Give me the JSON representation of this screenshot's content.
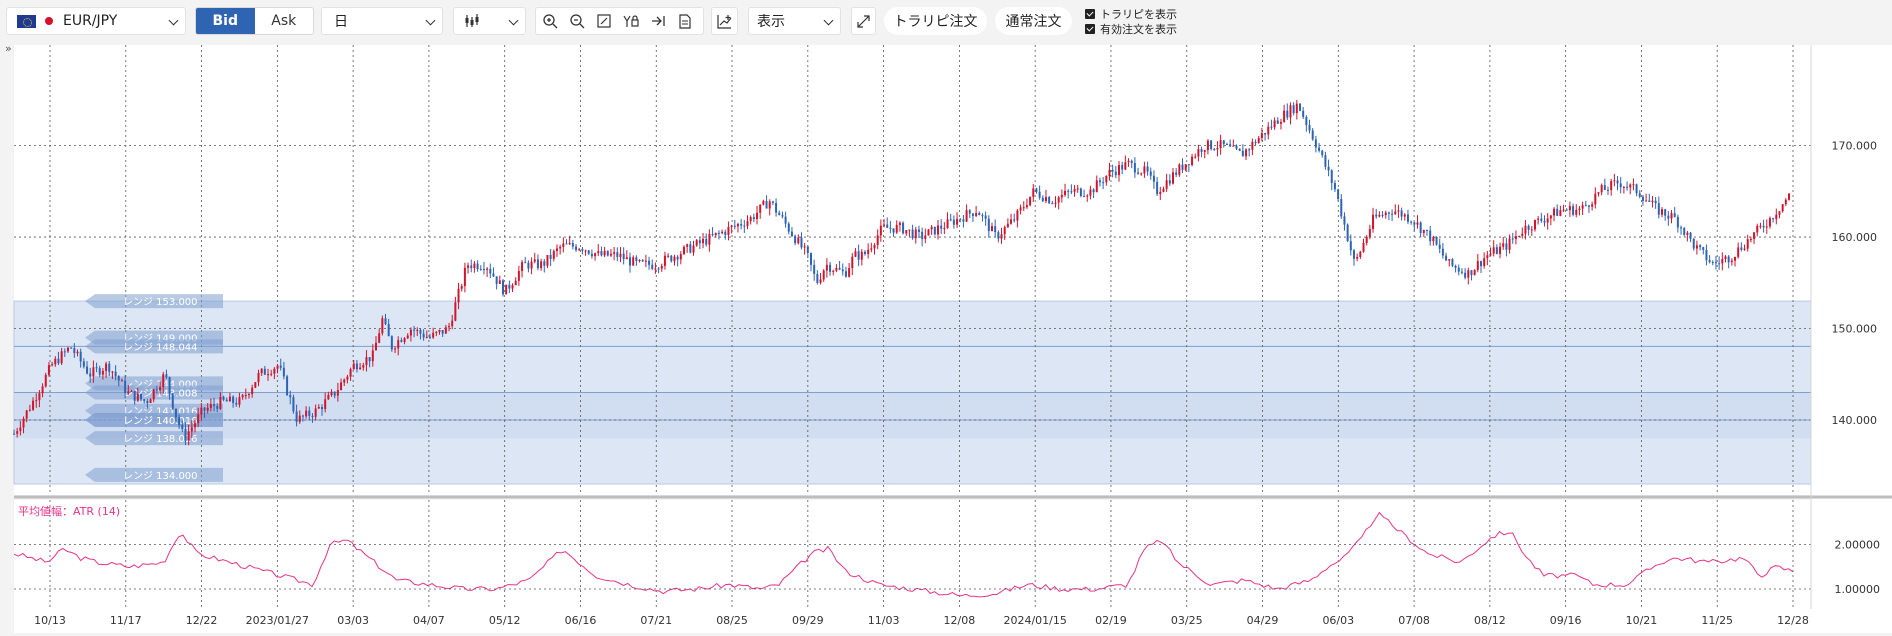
{
  "toolbar": {
    "symbol": "EUR/JPY",
    "symbol_icon": "eu-flag-icon",
    "bid_label": "Bid",
    "ask_label": "Ask",
    "timeframe": "日",
    "chart_type_icon": "candlestick-icon",
    "display_label": "表示",
    "trail_order_label": "トラリピ注文",
    "normal_order_label": "通常注文",
    "show_trail_label": "トラリピを表示",
    "show_active_label": "有効注文を表示",
    "tools": [
      "zoom-in-icon",
      "zoom-out-icon",
      "fit-icon",
      "text-lock-icon",
      "jump-end-icon",
      "document-icon",
      "indicator-add-icon"
    ]
  },
  "colors": {
    "up": "#d0152c",
    "down": "#2d63b5",
    "range_fill": "#dce6f4",
    "range_tag": "#7f9fd0",
    "atr_line": "#e6338a",
    "accent": "#2f64b3"
  },
  "chart_data": {
    "type": "candlestick",
    "y_ticks": [
      "170.000",
      "160.000",
      "150.000",
      "140.000"
    ],
    "y_range": [
      131.8,
      181.0
    ],
    "x_labels": [
      "10/13",
      "11/17",
      "12/22",
      "2023/01/27",
      "03/03",
      "04/07",
      "05/12",
      "06/16",
      "07/21",
      "08/25",
      "09/29",
      "11/03",
      "12/08",
      "2024/01/15",
      "02/19",
      "03/25",
      "04/29",
      "06/03",
      "07/08",
      "08/12",
      "09/16",
      "10/21",
      "11/25",
      "12/28"
    ],
    "price_path": [
      [
        0,
        138.5
      ],
      [
        2,
        142
      ],
      [
        4,
        146
      ],
      [
        6,
        148
      ],
      [
        8,
        145
      ],
      [
        10,
        146
      ],
      [
        12,
        143
      ],
      [
        14,
        142
      ],
      [
        16,
        145
      ],
      [
        17,
        141
      ],
      [
        18,
        138
      ],
      [
        20,
        141
      ],
      [
        22,
        142
      ],
      [
        24,
        142
      ],
      [
        26,
        145
      ],
      [
        28,
        146
      ],
      [
        30,
        140
      ],
      [
        32,
        141
      ],
      [
        34,
        143
      ],
      [
        36,
        146
      ],
      [
        38,
        147
      ],
      [
        39,
        151
      ],
      [
        40,
        148
      ],
      [
        42,
        150
      ],
      [
        44,
        149
      ],
      [
        46,
        150
      ],
      [
        48,
        157
      ],
      [
        50,
        157
      ],
      [
        52,
        154
      ],
      [
        54,
        157
      ],
      [
        56,
        157
      ],
      [
        58,
        159
      ],
      [
        60,
        159
      ],
      [
        62,
        158
      ],
      [
        64,
        158
      ],
      [
        66,
        157
      ],
      [
        68,
        157
      ],
      [
        70,
        158
      ],
      [
        72,
        159
      ],
      [
        74,
        160
      ],
      [
        76,
        161
      ],
      [
        78,
        162
      ],
      [
        80,
        164
      ],
      [
        82,
        161
      ],
      [
        84,
        158
      ],
      [
        85,
        155
      ],
      [
        86,
        157
      ],
      [
        88,
        156
      ],
      [
        89,
        158
      ],
      [
        90,
        158
      ],
      [
        92,
        161
      ],
      [
        94,
        161
      ],
      [
        96,
        160
      ],
      [
        98,
        161
      ],
      [
        100,
        162
      ],
      [
        102,
        163
      ],
      [
        104,
        160
      ],
      [
        106,
        162
      ],
      [
        108,
        165
      ],
      [
        110,
        164
      ],
      [
        112,
        165
      ],
      [
        114,
        165
      ],
      [
        116,
        167
      ],
      [
        118,
        168
      ],
      [
        120,
        167
      ],
      [
        121,
        165
      ],
      [
        122,
        166
      ],
      [
        124,
        168
      ],
      [
        126,
        170
      ],
      [
        128,
        170
      ],
      [
        130,
        169
      ],
      [
        132,
        171
      ],
      [
        134,
        173
      ],
      [
        136,
        174.5
      ],
      [
        138,
        170
      ],
      [
        140,
        165
      ],
      [
        142,
        157
      ],
      [
        144,
        162
      ],
      [
        146,
        163
      ],
      [
        148,
        162
      ],
      [
        150,
        160
      ],
      [
        152,
        157
      ],
      [
        154,
        156
      ],
      [
        156,
        158
      ],
      [
        158,
        159
      ],
      [
        160,
        161
      ],
      [
        162,
        162
      ],
      [
        164,
        163
      ],
      [
        166,
        163
      ],
      [
        168,
        165
      ],
      [
        170,
        166
      ],
      [
        172,
        165
      ],
      [
        174,
        163
      ],
      [
        176,
        162
      ],
      [
        178,
        159
      ],
      [
        180,
        157
      ],
      [
        182,
        158
      ],
      [
        184,
        160
      ],
      [
        186,
        162
      ],
      [
        188,
        164.5
      ]
    ],
    "range_lines": [
      {
        "label": "レンジ 153.000",
        "value": 153.0
      },
      {
        "label": "レンジ 149.000",
        "value": 149.0
      },
      {
        "label": "レンジ 148.044",
        "value": 148.044
      },
      {
        "label": "レンジ 144.000",
        "value": 144.0
      },
      {
        "label": "レンジ 143.008",
        "value": 143.008
      },
      {
        "label": "レンジ 141.016",
        "value": 141.016
      },
      {
        "label": "レンジ 140.000",
        "value": 140.0
      },
      {
        "label": "レンジ 140.016",
        "value": 140.016
      },
      {
        "label": "レンジ 138.016",
        "value": 138.016
      },
      {
        "label": "レンジ 134.000",
        "value": 134.0
      }
    ],
    "range_band": [
      133.0,
      153.0
    ],
    "inner_band": [
      138.0,
      143.0
    ],
    "h_lines": [
      148.044,
      143.0,
      140.0
    ],
    "atr": {
      "title": "平均値幅：ATR (14)",
      "y_ticks": [
        "2.00000",
        "1.00000"
      ],
      "y_range": [
        0.55,
        3.0
      ],
      "path": [
        [
          0,
          1.8
        ],
        [
          4,
          1.6
        ],
        [
          6,
          1.9
        ],
        [
          8,
          1.7
        ],
        [
          10,
          1.6
        ],
        [
          14,
          1.5
        ],
        [
          18,
          1.6
        ],
        [
          20,
          2.3
        ],
        [
          22,
          1.8
        ],
        [
          26,
          1.6
        ],
        [
          30,
          1.4
        ],
        [
          34,
          1.2
        ],
        [
          36,
          1.1
        ],
        [
          38,
          2.0
        ],
        [
          40,
          2.1
        ],
        [
          42,
          1.8
        ],
        [
          46,
          1.2
        ],
        [
          50,
          1.1
        ],
        [
          54,
          1.0
        ],
        [
          58,
          1.0
        ],
        [
          62,
          1.2
        ],
        [
          66,
          1.9
        ],
        [
          70,
          1.3
        ],
        [
          74,
          1.1
        ],
        [
          78,
          0.95
        ],
        [
          82,
          1.0
        ],
        [
          86,
          1.1
        ],
        [
          90,
          1.0
        ],
        [
          92,
          1.1
        ],
        [
          96,
          1.8
        ],
        [
          98,
          1.9
        ],
        [
          100,
          1.4
        ],
        [
          104,
          1.1
        ],
        [
          108,
          1.0
        ],
        [
          112,
          0.9
        ],
        [
          114,
          0.85
        ],
        [
          118,
          0.9
        ],
        [
          122,
          1.1
        ],
        [
          126,
          1.0
        ],
        [
          130,
          1.0
        ],
        [
          134,
          1.1
        ],
        [
          136,
          1.9
        ],
        [
          138,
          2.1
        ],
        [
          140,
          1.6
        ],
        [
          144,
          1.1
        ],
        [
          148,
          1.2
        ],
        [
          152,
          1.0
        ],
        [
          156,
          1.2
        ],
        [
          158,
          1.5
        ],
        [
          160,
          1.7
        ],
        [
          162,
          2.1
        ],
        [
          164,
          2.7
        ],
        [
          166,
          2.4
        ],
        [
          170,
          1.8
        ],
        [
          174,
          1.6
        ],
        [
          178,
          2.2
        ],
        [
          180,
          2.3
        ],
        [
          182,
          1.7
        ],
        [
          184,
          1.3
        ],
        [
          188,
          1.3
        ],
        [
          190,
          1.1
        ],
        [
          194,
          1.1
        ],
        [
          198,
          1.6
        ],
        [
          200,
          1.7
        ],
        [
          204,
          1.6
        ],
        [
          208,
          1.7
        ],
        [
          210,
          1.3
        ],
        [
          212,
          1.5
        ],
        [
          214,
          1.4
        ]
      ]
    }
  }
}
